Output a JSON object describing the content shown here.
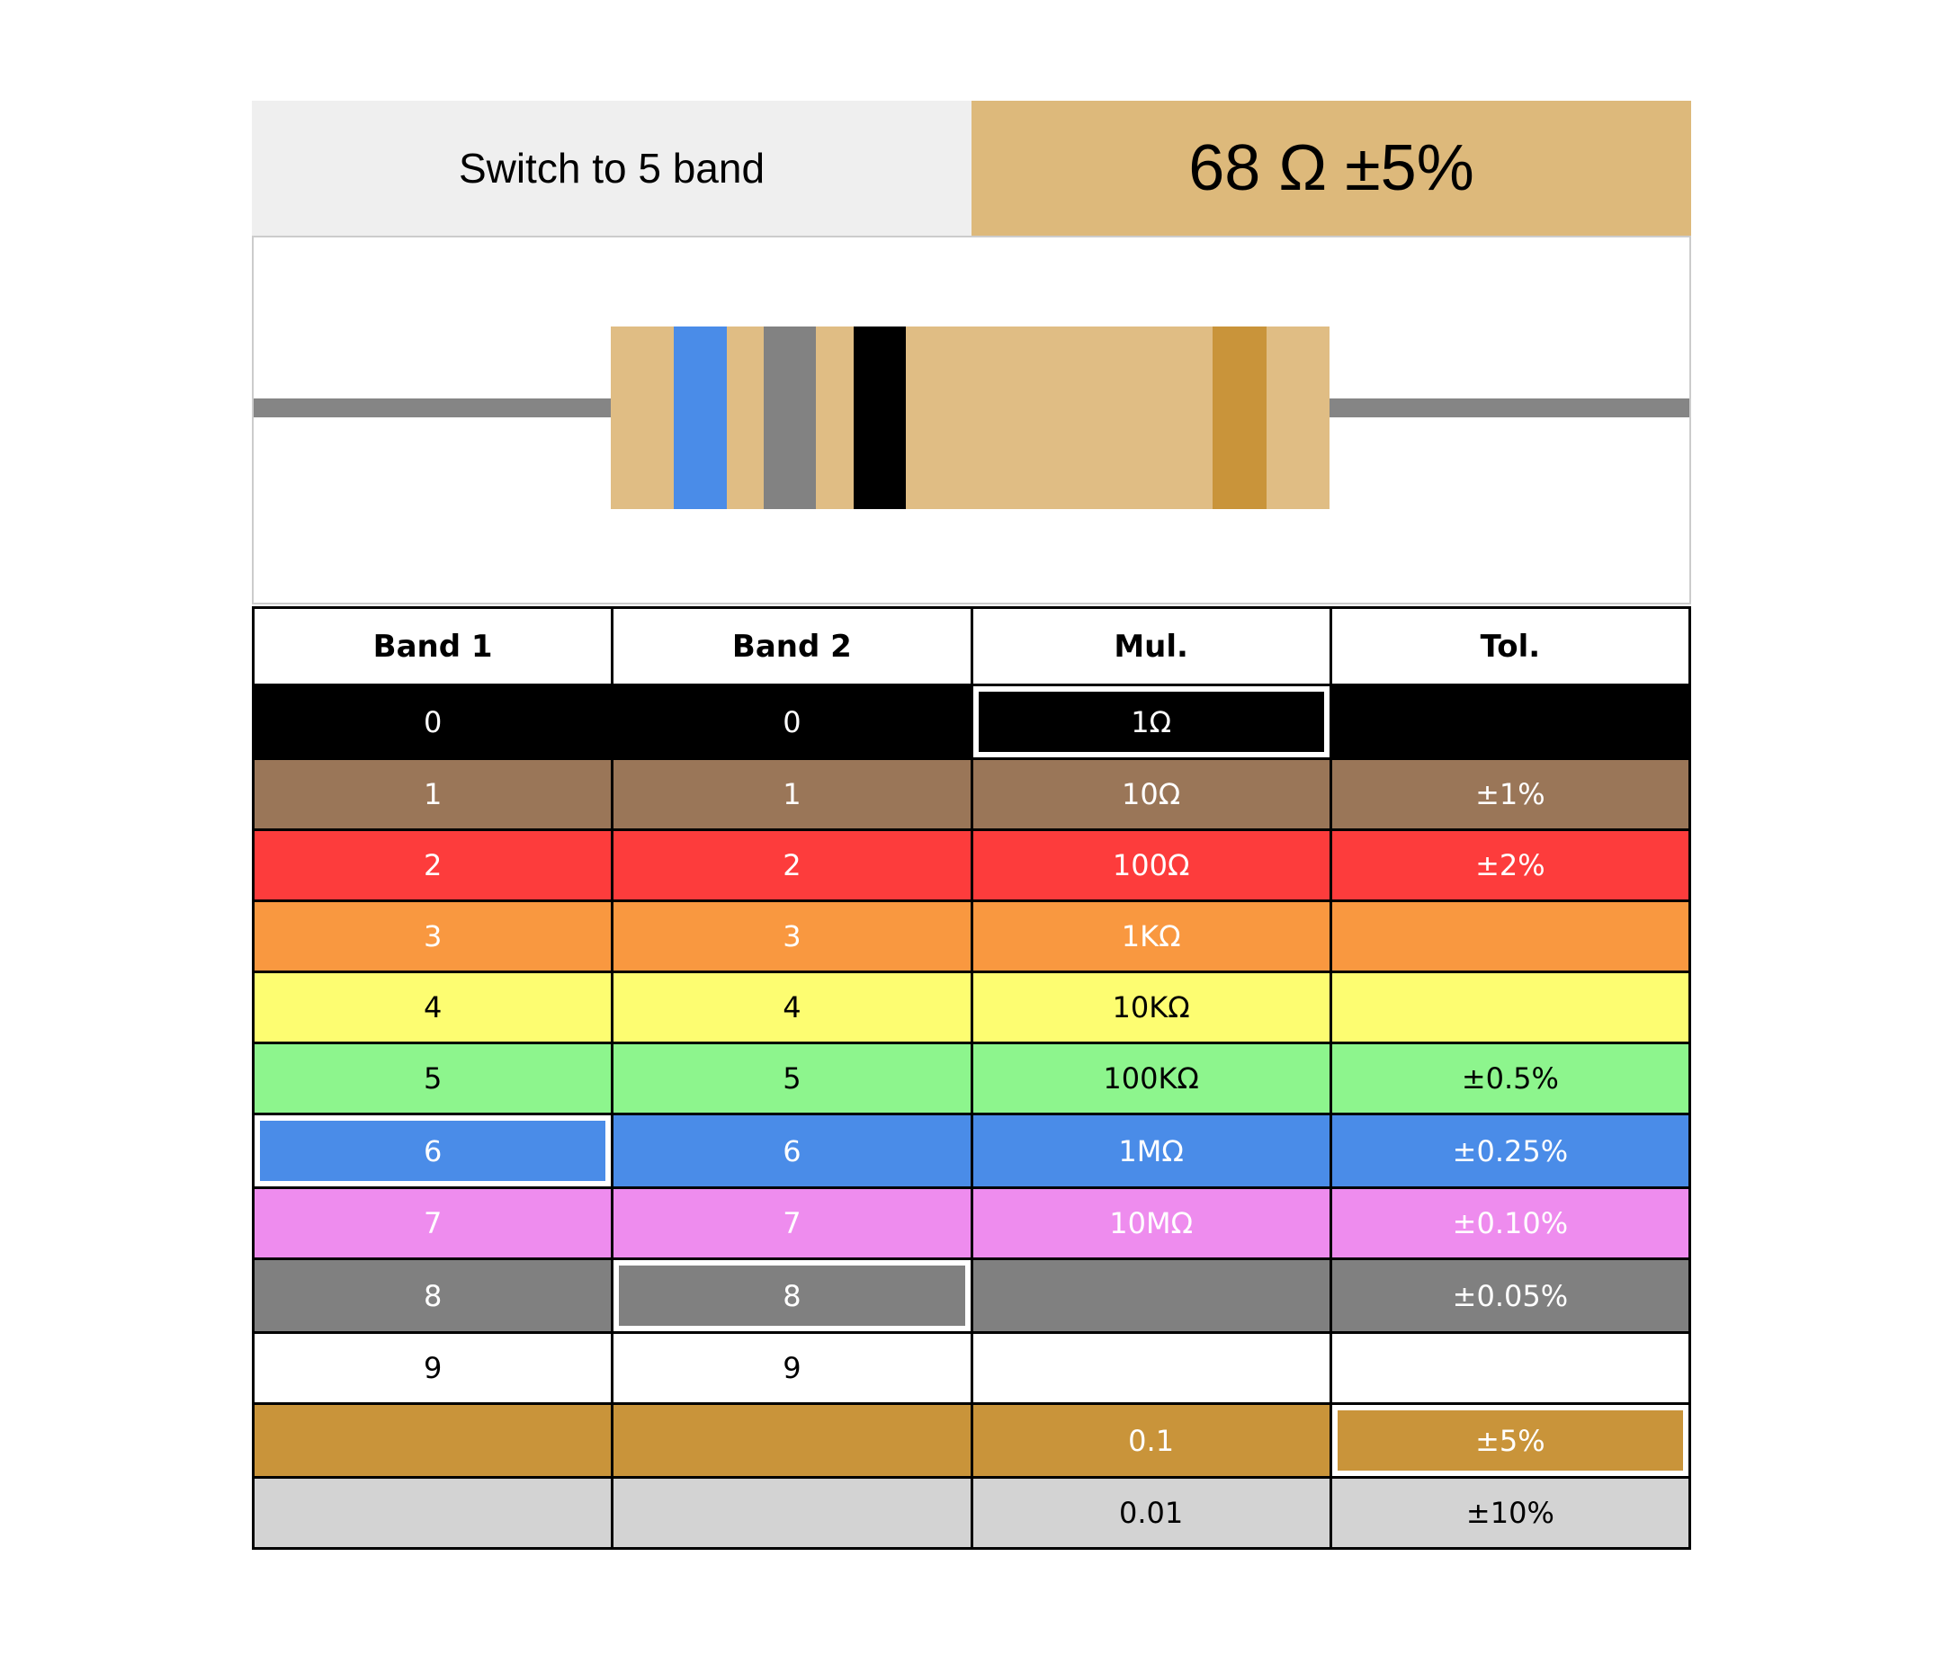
{
  "toolbar": {
    "switch_button_label": "Switch to 5 band",
    "result_value": "68 Ω ±5%",
    "result_bg": "#ddb97b"
  },
  "resistor": {
    "lead_color": "#858585",
    "body_color": "#e0bd84",
    "bands": [
      {
        "name": "band 1",
        "color": "blue",
        "hex": "#4a8ce8"
      },
      {
        "name": "band 2",
        "color": "gray",
        "hex": "#828282"
      },
      {
        "name": "multiplier",
        "color": "black",
        "hex": "#000000"
      },
      {
        "name": "tolerance",
        "color": "gold",
        "hex": "#c9943a"
      }
    ]
  },
  "table": {
    "headers": [
      "Band 1",
      "Band 2",
      "Mul.",
      "Tol."
    ],
    "rows": [
      {
        "color": "black",
        "bg": "#000000",
        "fg": "#ffffff",
        "cells": [
          {
            "label": "0"
          },
          {
            "label": "0"
          },
          {
            "label": "1Ω",
            "selected": true
          },
          {
            "label": ""
          }
        ]
      },
      {
        "color": "brown",
        "bg": "#9a7658",
        "fg": "#ffffff",
        "cells": [
          {
            "label": "1"
          },
          {
            "label": "1"
          },
          {
            "label": "10Ω"
          },
          {
            "label": "±1%"
          }
        ]
      },
      {
        "color": "red",
        "bg": "#fd3c3c",
        "fg": "#ffffff",
        "cells": [
          {
            "label": "2"
          },
          {
            "label": "2"
          },
          {
            "label": "100Ω"
          },
          {
            "label": "±2%"
          }
        ]
      },
      {
        "color": "orange",
        "bg": "#f99840",
        "fg": "#ffffff",
        "cells": [
          {
            "label": "3"
          },
          {
            "label": "3"
          },
          {
            "label": "1KΩ"
          },
          {
            "label": ""
          }
        ]
      },
      {
        "color": "yellow",
        "bg": "#fdfd71",
        "fg": "#000000",
        "cells": [
          {
            "label": "4"
          },
          {
            "label": "4"
          },
          {
            "label": "10KΩ"
          },
          {
            "label": ""
          }
        ]
      },
      {
        "color": "green",
        "bg": "#8df58d",
        "fg": "#000000",
        "cells": [
          {
            "label": "5"
          },
          {
            "label": "5"
          },
          {
            "label": "100KΩ"
          },
          {
            "label": "±0.5%"
          }
        ]
      },
      {
        "color": "blue",
        "bg": "#4a8ce8",
        "fg": "#ffffff",
        "cells": [
          {
            "label": "6",
            "selected": true
          },
          {
            "label": "6"
          },
          {
            "label": "1MΩ"
          },
          {
            "label": "±0.25%"
          }
        ]
      },
      {
        "color": "violet",
        "bg": "#ee8cee",
        "fg": "#ffffff",
        "cells": [
          {
            "label": "7"
          },
          {
            "label": "7"
          },
          {
            "label": "10MΩ"
          },
          {
            "label": "±0.10%"
          }
        ]
      },
      {
        "color": "gray",
        "bg": "#808080",
        "fg": "#ffffff",
        "cells": [
          {
            "label": "8"
          },
          {
            "label": "8",
            "selected": true
          },
          {
            "label": ""
          },
          {
            "label": "±0.05%"
          }
        ]
      },
      {
        "color": "white",
        "bg": "#ffffff",
        "fg": "#000000",
        "cells": [
          {
            "label": "9"
          },
          {
            "label": "9"
          },
          {
            "label": ""
          },
          {
            "label": ""
          }
        ]
      },
      {
        "color": "gold",
        "bg": "#c9943a",
        "fg": "#ffffff",
        "cells": [
          {
            "label": ""
          },
          {
            "label": ""
          },
          {
            "label": "0.1"
          },
          {
            "label": "±5%",
            "selected": true
          }
        ]
      },
      {
        "color": "silver",
        "bg": "#d3d3d3",
        "fg": "#000000",
        "cells": [
          {
            "label": ""
          },
          {
            "label": ""
          },
          {
            "label": "0.01"
          },
          {
            "label": "±10%"
          }
        ]
      }
    ]
  }
}
